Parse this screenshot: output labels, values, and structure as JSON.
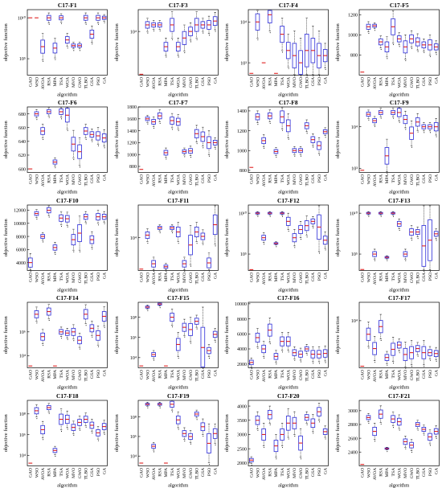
{
  "figure": {
    "algorithms": [
      "GAO",
      "WSO",
      "AVOA",
      "RSA",
      "MPA",
      "TSA",
      "WOA",
      "MVO",
      "GWO",
      "TLBO",
      "GSA",
      "PSO",
      "GA"
    ],
    "xlabel": "algorithm",
    "ylabel": "objective function",
    "colors": {
      "box": "#2b2bd9",
      "median": "#e02020",
      "outlier": "#000000",
      "whisker": "#000000"
    }
  },
  "chart_data": [
    {
      "type": "box",
      "title": "C17-F1",
      "scale": "log",
      "ylim": [
        1000.0,
        100000000000.0
      ],
      "ticks": [
        {
          "v": 100000.0,
          "label": "10⁵"
        },
        {
          "v": 10000000000.0,
          "label": "10¹⁰"
        }
      ],
      "medians": [
        10000000000.0,
        10000000000.0,
        3000000.0,
        10000000000.0,
        2000000.0,
        10000000000.0,
        20000000.0,
        4000000.0,
        4000000.0,
        10000000000.0,
        100000000.0,
        10000000000.0,
        10000000000.0
      ],
      "spreads": [
        0,
        0,
        0.8,
        0.3,
        0.6,
        0.25,
        0.4,
        0.2,
        0.2,
        0.3,
        0.5,
        0.3,
        0.2
      ]
    },
    {
      "type": "box",
      "title": "C17-F3",
      "scale": "log",
      "ylim": [
        100.0,
        100000.0
      ],
      "ticks": [
        {
          "v": 10000.0,
          "label": "10⁴"
        }
      ],
      "medians": [
        100,
        20000.0,
        20000.0,
        20000.0,
        2000.0,
        20000.0,
        2000.0,
        5000.0,
        10000.0,
        20000.0,
        20000.0,
        20000.0,
        30000.0
      ],
      "spreads": [
        0,
        0.15,
        0.1,
        0.1,
        0.2,
        0.3,
        0.2,
        0.3,
        0.2,
        0.3,
        0.15,
        0.2,
        0.2
      ]
    },
    {
      "type": "box",
      "title": "C17-F4",
      "scale": "log",
      "ylim": [
        500,
        20000.0
      ],
      "ticks": [
        {
          "v": 1000.0,
          "label": "10³"
        },
        {
          "v": 10000.0,
          "label": "10⁴"
        }
      ],
      "medians": [
        550,
        10000.0,
        1000.0,
        15000.0,
        550,
        5000.0,
        2000.0,
        1500.0,
        1000.0,
        2000.0,
        2000.0,
        1500.0,
        1500.0
      ],
      "spreads": [
        0,
        0.2,
        0,
        0.2,
        0,
        0.2,
        0.2,
        0.3,
        0.3,
        0.4,
        0.3,
        0.3,
        0.15
      ]
    },
    {
      "type": "box",
      "title": "C17-F5",
      "scale": "linear",
      "ylim": [
        600,
        1250
      ],
      "ticks": [
        {
          "v": 800,
          "label": "800"
        },
        {
          "v": 1000,
          "label": "1000"
        },
        {
          "v": 1200,
          "label": "1200"
        }
      ],
      "medians": [
        630,
        1080,
        1090,
        930,
        880,
        1080,
        960,
        880,
        960,
        930,
        900,
        900,
        880
      ],
      "spreads": [
        0,
        25,
        15,
        30,
        50,
        80,
        30,
        60,
        40,
        40,
        30,
        50,
        30
      ]
    },
    {
      "type": "box",
      "title": "C17-F6",
      "scale": "linear",
      "ylim": [
        595,
        690
      ],
      "ticks": [
        {
          "v": 600,
          "label": "600"
        },
        {
          "v": 620,
          "label": "620"
        },
        {
          "v": 640,
          "label": "640"
        },
        {
          "v": 660,
          "label": "660"
        },
        {
          "v": 680,
          "label": "680"
        }
      ],
      "medians": [
        600,
        680,
        655,
        683,
        610,
        683,
        678,
        636,
        625,
        655,
        650,
        648,
        645
      ],
      "spreads": [
        0,
        3,
        5,
        3,
        3,
        4,
        10,
        10,
        10,
        5,
        4,
        6,
        6
      ]
    },
    {
      "type": "box",
      "title": "C17-F7",
      "scale": "linear",
      "ylim": [
        700,
        1800
      ],
      "ticks": [
        {
          "v": 800,
          "label": "800"
        },
        {
          "v": 1000,
          "label": "1000"
        },
        {
          "v": 1200,
          "label": "1200"
        },
        {
          "v": 1400,
          "label": "1400"
        },
        {
          "v": 1600,
          "label": "1600"
        },
        {
          "v": 1800,
          "label": "1800"
        }
      ],
      "medians": [
        750,
        1600,
        1550,
        1650,
        1030,
        1570,
        1550,
        1050,
        1060,
        1350,
        1300,
        1200,
        1200
      ],
      "spreads": [
        0,
        30,
        40,
        50,
        40,
        60,
        60,
        30,
        40,
        70,
        80,
        100,
        40
      ]
    },
    {
      "type": "box",
      "title": "C17-F8",
      "scale": "linear",
      "ylim": [
        780,
        1440
      ],
      "ticks": [
        {
          "v": 800,
          "label": "800"
        },
        {
          "v": 1000,
          "label": "1000"
        },
        {
          "v": 1200,
          "label": "1200"
        },
        {
          "v": 1400,
          "label": "1400"
        }
      ],
      "medians": [
        830,
        1340,
        1100,
        1350,
        990,
        1340,
        1250,
        1000,
        1000,
        1250,
        1110,
        1050,
        1190
      ],
      "spreads": [
        0,
        30,
        30,
        30,
        20,
        60,
        60,
        20,
        20,
        30,
        30,
        40,
        20
      ]
    },
    {
      "type": "box",
      "title": "C17-F9",
      "scale": "log",
      "ylim": [
        800,
        30000.0
      ],
      "ticks": [
        {
          "v": 1000.0,
          "label": "10³"
        },
        {
          "v": 10000.0,
          "label": "10⁴"
        }
      ],
      "medians": [
        900,
        20000.0,
        14000.0,
        22000.0,
        2000.0,
        22000.0,
        22000.0,
        15000.0,
        7000.0,
        13000.0,
        10000.0,
        10000.0,
        10000.0
      ],
      "spreads": [
        0,
        0.05,
        0.05,
        0.05,
        0.2,
        0.05,
        0.1,
        0.1,
        0.15,
        0.1,
        0.05,
        0.05,
        0.1
      ]
    },
    {
      "type": "box",
      "title": "C17-F10",
      "scale": "linear",
      "ylim": [
        2800,
        12800
      ],
      "ticks": [
        {
          "v": 4000,
          "label": "4000"
        },
        {
          "v": 6000,
          "label": "6000"
        },
        {
          "v": 8000,
          "label": "8000"
        },
        {
          "v": 10000,
          "label": "10000"
        },
        {
          "v": 12000,
          "label": "12000"
        }
      ],
      "medians": [
        4000,
        11500,
        8000,
        12000,
        6300,
        10800,
        10700,
        7500,
        8500,
        11000,
        7500,
        11000,
        11000
      ],
      "spreads": [
        700,
        300,
        300,
        400,
        400,
        500,
        500,
        800,
        1300,
        400,
        600,
        500,
        400
      ]
    },
    {
      "type": "box",
      "title": "C17-F11",
      "scale": "log",
      "ylim": [
        1000.0,
        100000.0
      ],
      "ticks": [
        {
          "v": 10000.0,
          "label": "10⁴"
        }
      ],
      "medians": [
        1100,
        12000.0,
        1600.0,
        20000.0,
        1300.0,
        20000.0,
        15000.0,
        1600.0,
        6000.0,
        15000.0,
        11000.0,
        1700.0,
        25000.0
      ],
      "spreads": [
        0,
        0.1,
        0.1,
        0.05,
        0.05,
        0.05,
        0.15,
        0.1,
        0.3,
        0.15,
        0.1,
        0.15,
        0.3
      ]
    },
    {
      "type": "box",
      "title": "C17-F12",
      "scale": "log",
      "ylim": [
        1000.0,
        100000000000.0
      ],
      "ticks": [
        {
          "v": 100000.0,
          "label": "10⁵"
        },
        {
          "v": 10000000000.0,
          "label": "10¹⁰"
        }
      ],
      "medians": [
        1200,
        10000000000.0,
        10000000.0,
        10000000000.0,
        2000000.0,
        10000000000.0,
        1000000000.0,
        10000000.0,
        100000000.0,
        300000000.0,
        1000000000.0,
        200000000.0,
        5000000.0
      ],
      "spreads": [
        0,
        0.1,
        0.3,
        0.1,
        0.1,
        0.1,
        0.5,
        0.5,
        0.5,
        0.6,
        0.3,
        1.5,
        0.5
      ]
    },
    {
      "type": "box",
      "title": "C17-F13",
      "scale": "log",
      "ylim": [
        1000.0,
        100000000000.0
      ],
      "ticks": [
        {
          "v": 100000.0,
          "label": "10⁵"
        },
        {
          "v": 10000000000.0,
          "label": "10¹⁰"
        }
      ],
      "medians": [
        1300,
        10000000000.0,
        100000.0,
        10000000000.0,
        40000.0,
        10000000000.0,
        500000000.0,
        100000.0,
        50000000.0,
        50000000.0,
        1000000.0,
        5000000.0,
        30000000.0
      ],
      "spreads": [
        0,
        0.1,
        0.3,
        0.1,
        0.1,
        0.1,
        0.3,
        0.3,
        0.4,
        0.3,
        2.5,
        2.5,
        0.3
      ]
    },
    {
      "type": "box",
      "title": "C17-F14",
      "scale": "log",
      "ylim": [
        1000.0,
        300000000.0
      ],
      "ticks": [
        {
          "v": 10000.0,
          "label": "10⁴"
        },
        {
          "v": 1000000.0,
          "label": "10⁶"
        }
      ],
      "medians": [
        1400,
        30000000.0,
        400000.0,
        50000000.0,
        1400,
        1000000.0,
        800000.0,
        1000000.0,
        200000.0,
        30000000.0,
        2000000.0,
        500000.0,
        20000000.0
      ],
      "spreads": [
        0,
        0.3,
        0.3,
        0.3,
        0,
        0.2,
        0.2,
        0.3,
        0.3,
        0.4,
        0.3,
        0.4,
        0.4
      ]
    },
    {
      "type": "box",
      "title": "C17-F15",
      "scale": "log",
      "ylim": [
        1000.0,
        3000000000.0
      ],
      "ticks": [
        {
          "v": 10000.0,
          "label": "10⁴"
        },
        {
          "v": 1000000.0,
          "label": "10⁶"
        },
        {
          "v": 100000000.0,
          "label": "10⁸"
        }
      ],
      "medians": [
        1500,
        1000000000.0,
        20000.0,
        2000000000.0,
        1500,
        100000000.0,
        200000.0,
        10000000.0,
        6000000.0,
        40000000.0,
        100000.0,
        50000.0,
        2000000.0
      ],
      "spreads": [
        0,
        0.1,
        0.2,
        0.1,
        0,
        0.4,
        0.6,
        0.4,
        0.6,
        0.3,
        2,
        0.3,
        0.3
      ]
    },
    {
      "type": "box",
      "title": "C17-F16",
      "scale": "linear",
      "ylim": [
        1500,
        10200
      ],
      "ticks": [
        {
          "v": 2000,
          "label": "2000"
        },
        {
          "v": 4000,
          "label": "4000"
        },
        {
          "v": 6000,
          "label": "6000"
        },
        {
          "v": 8000,
          "label": "8000"
        },
        {
          "v": 10000,
          "label": "10000"
        }
      ],
      "medians": [
        2200,
        5500,
        4000,
        6500,
        3000,
        5000,
        5000,
        3500,
        3300,
        4000,
        3300,
        3300,
        3400
      ],
      "spreads": [
        300,
        600,
        500,
        800,
        400,
        600,
        600,
        400,
        400,
        300,
        500,
        500,
        500
      ]
    },
    {
      "type": "box",
      "title": "C17-F17",
      "scale": "log",
      "ylim": [
        1700,
        20000.0
      ],
      "ticks": [
        {
          "v": 10000.0,
          "label": "10⁴"
        }
      ],
      "medians": [
        1800,
        6000,
        3500,
        8000,
        2500,
        3400,
        4000,
        2800,
        3000,
        3500,
        3000,
        3000,
        2900
      ],
      "spreads": [
        0,
        0.1,
        0.1,
        0.1,
        0.05,
        0.1,
        0.05,
        0.1,
        0.1,
        0.05,
        0.1,
        0.05,
        0.05
      ]
    },
    {
      "type": "box",
      "title": "C17-F18",
      "scale": "log",
      "ylim": [
        1000.0,
        2000000000.0
      ],
      "ticks": [
        {
          "v": 10000.0,
          "label": "10⁴"
        },
        {
          "v": 1000000.0,
          "label": "10⁶"
        },
        {
          "v": 100000000.0,
          "label": "10⁸"
        }
      ],
      "medians": [
        1800,
        200000000.0,
        3000000.0,
        400000000.0,
        30000.0,
        30000000.0,
        30000000.0,
        5000000.0,
        15000000.0,
        30000000.0,
        8000000.0,
        1500000.0,
        6000000.0
      ],
      "spreads": [
        0,
        0.3,
        0.4,
        0.2,
        0.2,
        0.5,
        0.4,
        0.3,
        0.3,
        0.3,
        0.3,
        0.3,
        0.3
      ]
    },
    {
      "type": "box",
      "title": "C17-F19",
      "scale": "log",
      "ylim": [
        1000.0,
        5000000000.0
      ],
      "ticks": [
        {
          "v": 10000.0,
          "label": "10⁴"
        },
        {
          "v": 1000000.0,
          "label": "10⁶"
        },
        {
          "v": 100000000.0,
          "label": "10⁸"
        }
      ],
      "medians": [
        1900,
        2000000000.0,
        100000.0,
        2000000000.0,
        1900,
        2000000000.0,
        50000000.0,
        2000000.0,
        1000000.0,
        200000000.0,
        10000000.0,
        200000.0,
        2000000.0
      ],
      "spreads": [
        0,
        0.1,
        0.2,
        0.1,
        0,
        0.3,
        0.4,
        0.3,
        0.3,
        0.2,
        0.4,
        1,
        0.5
      ]
    },
    {
      "type": "box",
      "title": "C17-F20",
      "scale": "linear",
      "ylim": [
        1900,
        4200
      ],
      "ticks": [
        {
          "v": 2000,
          "label": "2000"
        },
        {
          "v": 2500,
          "label": "2500"
        },
        {
          "v": 3000,
          "label": "3000"
        },
        {
          "v": 3500,
          "label": "3500"
        },
        {
          "v": 4000,
          "label": "4000"
        }
      ],
      "medians": [
        2100,
        3500,
        3000,
        3700,
        2600,
        3000,
        3400,
        3400,
        2700,
        3600,
        3400,
        3800,
        3100
      ],
      "spreads": [
        60,
        150,
        200,
        150,
        200,
        200,
        250,
        200,
        250,
        100,
        150,
        150,
        100
      ]
    },
    {
      "type": "box",
      "title": "C17-F21",
      "scale": "linear",
      "ylim": [
        2200,
        3150
      ],
      "ticks": [
        {
          "v": 2400,
          "label": "2400"
        },
        {
          "v": 2600,
          "label": "2600"
        },
        {
          "v": 2800,
          "label": "2800"
        },
        {
          "v": 3000,
          "label": "3000"
        }
      ],
      "medians": [
        2220,
        2900,
        2700,
        2950,
        2450,
        2880,
        2840,
        2550,
        2500,
        2800,
        2730,
        2620,
        2700
      ],
      "spreads": [
        0,
        30,
        60,
        60,
        10,
        50,
        50,
        40,
        40,
        30,
        30,
        50,
        40
      ]
    }
  ]
}
